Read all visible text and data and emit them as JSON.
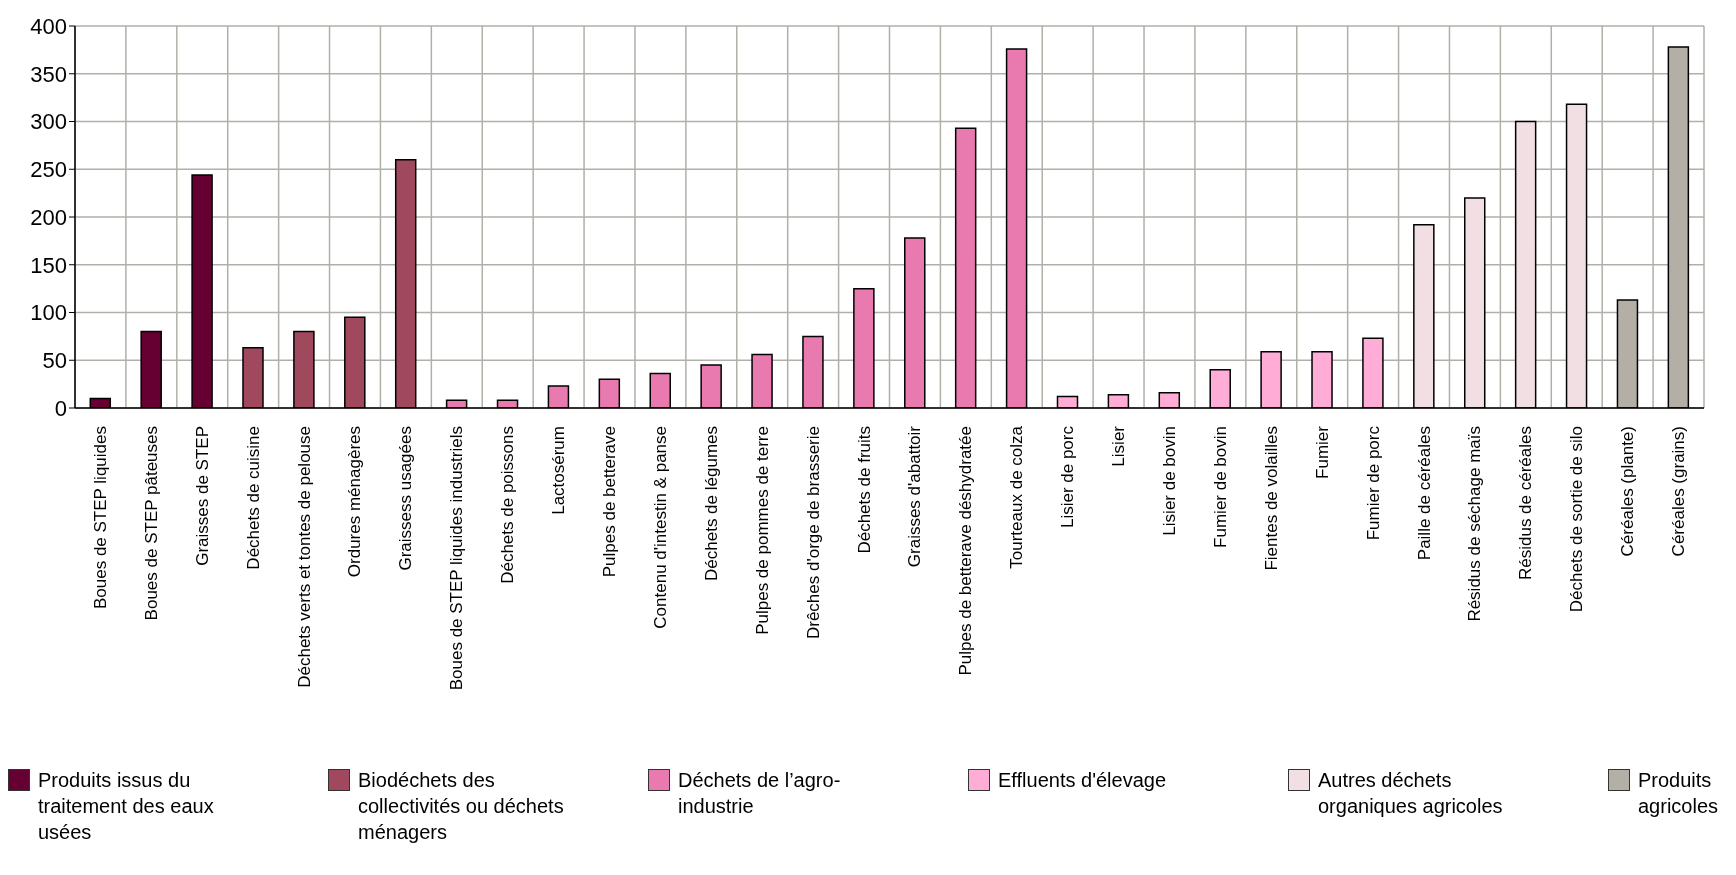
{
  "chart_data": {
    "type": "bar",
    "stacked": true,
    "grid": true,
    "legend": "bottom",
    "categories": [
      "Boues de STEP liquides",
      "Boues de STEP pâteuses",
      "Graisses de STEP",
      "Déchets de cuisine",
      "Déchets verts et tontes de pelouse",
      "Ordures ménagères",
      "Graissess usagées",
      "Boues de STEP liquides industriels",
      "Déchets de poissons",
      "Lactosérum",
      "Pulpes de betterave",
      "Contenu d'intestin & panse",
      "Déchets de légumes",
      "Pulpes de pommes de terre",
      "Drêches d'orge de brasserie",
      "Déchets de fruits",
      "Graisses d'abattoir",
      "Pulpes de betterave déshydratée",
      "Tourteaux de colza",
      "Lisier de porc",
      "Lisier",
      "Lisier de bovin",
      "Fumier de bovin",
      "Fientes de volailles",
      "Fumier",
      "Fumier de porc",
      "Paille de céréales",
      "Résidus de séchage maïs",
      "Résidus de céréales",
      "Déchets de sortie de silo",
      "Céréales (plante)",
      "Céréales (grains)"
    ],
    "ylim": [
      0,
      400
    ],
    "yticks": [
      0,
      50,
      100,
      150,
      200,
      250,
      300,
      350,
      400
    ],
    "series": [
      {
        "name": "Produits issus du traitement des eaux usées",
        "color": "#660033",
        "values": [
          10,
          80,
          244,
          null,
          null,
          null,
          null,
          null,
          null,
          null,
          null,
          null,
          null,
          null,
          null,
          null,
          null,
          null,
          null,
          null,
          null,
          null,
          null,
          null,
          null,
          null,
          null,
          null,
          null,
          null,
          null,
          null
        ]
      },
      {
        "name": "Biodéchets des collectivités ou déchets ménagers",
        "color": "#a0485e",
        "values": [
          null,
          null,
          null,
          63,
          80,
          95,
          260,
          null,
          null,
          null,
          null,
          null,
          null,
          null,
          null,
          null,
          null,
          null,
          null,
          null,
          null,
          null,
          null,
          null,
          null,
          null,
          null,
          null,
          null,
          null,
          null,
          null
        ]
      },
      {
        "name": "Déchets de l’agro-industrie",
        "color": "#e97aaf",
        "values": [
          null,
          null,
          null,
          null,
          null,
          null,
          null,
          8,
          8,
          23,
          30,
          36,
          45,
          56,
          75,
          125,
          178,
          293,
          376,
          null,
          null,
          null,
          null,
          null,
          null,
          null,
          null,
          null,
          null,
          null,
          null,
          null
        ]
      },
      {
        "name": "Effluents d'élevage",
        "color": "#ffadd6",
        "values": [
          null,
          null,
          null,
          null,
          null,
          null,
          null,
          null,
          null,
          null,
          null,
          null,
          null,
          null,
          null,
          null,
          null,
          null,
          null,
          12,
          14,
          16,
          40,
          59,
          59,
          73,
          null,
          null,
          null,
          null,
          null,
          null
        ]
      },
      {
        "name": "Autres déchets organiques agricoles",
        "color": "#f2dfe4",
        "values": [
          null,
          null,
          null,
          null,
          null,
          null,
          null,
          null,
          null,
          null,
          null,
          null,
          null,
          null,
          null,
          null,
          null,
          null,
          null,
          null,
          null,
          null,
          null,
          null,
          null,
          null,
          192,
          220,
          300,
          318,
          null,
          null
        ]
      },
      {
        "name": "Produits agricoles",
        "color": "#b3afa7",
        "values": [
          null,
          null,
          null,
          null,
          null,
          null,
          null,
          null,
          null,
          null,
          null,
          null,
          null,
          null,
          null,
          null,
          null,
          null,
          null,
          null,
          null,
          null,
          null,
          null,
          null,
          null,
          null,
          null,
          null,
          null,
          113,
          378
        ]
      }
    ]
  }
}
